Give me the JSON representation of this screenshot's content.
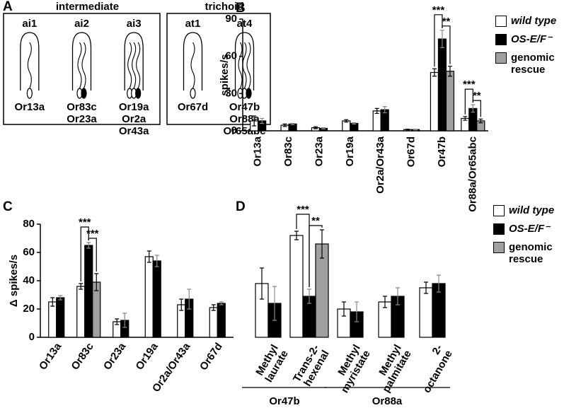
{
  "diagram": {
    "panel": "A",
    "groups": [
      {
        "title": "intermediate",
        "sensilla": [
          {
            "name": "ai1",
            "receptors": [
              "Or13a"
            ]
          },
          {
            "name": "ai2",
            "receptors": [
              "Or83c",
              "Or23a"
            ]
          },
          {
            "name": "ai3",
            "receptors": [
              "Or19a",
              "Or2a",
              "Or43a"
            ]
          }
        ]
      },
      {
        "title": "trichoid",
        "sensilla": [
          {
            "name": "at1",
            "receptors": [
              "Or67d"
            ]
          },
          {
            "name": "at4",
            "receptors": [
              "Or47b",
              "Or88a",
              "Or65abc"
            ]
          }
        ]
      }
    ]
  },
  "chart_data": [
    {
      "type": "bar",
      "panel": "B",
      "ylabel": "spikes/s",
      "categories": [
        "Or13a",
        "Or83c",
        "Or23a",
        "Or19a",
        "Or2a/Or43a",
        "Or67d",
        "Or47b",
        "Or88a/Or65abc"
      ],
      "series": [
        {
          "name": "wild type",
          "color": "#ffffff",
          "italic": true,
          "values": [
            8,
            4.5,
            2.5,
            8,
            16,
            1,
            47,
            10
          ],
          "errors": [
            4,
            1,
            0.8,
            1,
            2,
            0.3,
            3,
            1.5
          ]
        },
        {
          "name": "OS-E/F⁻",
          "color": "#000000",
          "italic": true,
          "values": [
            8,
            5.5,
            2,
            6,
            17,
            1,
            74,
            18
          ],
          "errors": [
            2,
            0.5,
            0.5,
            0.5,
            2.5,
            0.3,
            7,
            3
          ]
        },
        {
          "name": "genomic rescue",
          "color": "#a0a0a0",
          "italic": false,
          "values": [
            null,
            null,
            null,
            null,
            null,
            null,
            48,
            8
          ],
          "errors": [
            null,
            null,
            null,
            null,
            null,
            null,
            4,
            1.5
          ]
        }
      ],
      "annotations": [
        {
          "text": "***",
          "category": "Or47b",
          "between": [
            "wild type",
            "OS-E/F⁻"
          ]
        },
        {
          "text": "**",
          "category": "Or47b",
          "between": [
            "OS-E/F⁻",
            "genomic rescue"
          ]
        },
        {
          "text": "***",
          "category": "Or88a/Or65abc",
          "between": [
            "wild type",
            "OS-E/F⁻"
          ]
        },
        {
          "text": "**",
          "category": "Or88a/Or65abc",
          "between": [
            "OS-E/F⁻",
            "genomic rescue"
          ]
        }
      ],
      "ylim": [
        0,
        90
      ],
      "yticks": [
        0,
        30,
        60,
        90
      ],
      "legend": true
    },
    {
      "type": "bar",
      "panel": "C",
      "ylabel": "Δ spikes/s",
      "categories": [
        "Or13a",
        "Or83c",
        "Or23a",
        "Or19a",
        "Or2a/Or43a",
        "Or67d"
      ],
      "series": [
        {
          "name": "wild type",
          "color": "#ffffff",
          "italic": true,
          "values": [
            25,
            36,
            11,
            57,
            23,
            21
          ],
          "errors": [
            3,
            2,
            2,
            4,
            4,
            2
          ]
        },
        {
          "name": "OS-E/F⁻",
          "color": "#000000",
          "italic": true,
          "values": [
            28,
            65,
            12,
            54,
            27,
            24
          ],
          "errors": [
            1.5,
            2,
            5,
            4,
            7,
            1
          ]
        },
        {
          "name": "genomic rescue",
          "color": "#a0a0a0",
          "italic": false,
          "values": [
            null,
            39,
            null,
            null,
            null,
            null
          ],
          "errors": [
            null,
            6,
            null,
            null,
            null,
            null
          ]
        }
      ],
      "annotations": [
        {
          "text": "***",
          "category": "Or83c",
          "between": [
            "wild type",
            "OS-E/F⁻"
          ]
        },
        {
          "text": "***",
          "category": "Or83c",
          "between": [
            "OS-E/F⁻",
            "genomic rescue"
          ]
        }
      ],
      "ylim": [
        0,
        80
      ],
      "yticks": [
        0,
        20,
        40,
        60,
        80
      ],
      "legend": false
    },
    {
      "type": "bar",
      "panel": "D",
      "categories": [
        "Methyl laurate",
        "Trans-2-hexenal",
        "Methyl myristate",
        "Methyl palmitate",
        "2-octanone"
      ],
      "series": [
        {
          "name": "wild type",
          "color": "#ffffff",
          "italic": true,
          "values": [
            38,
            72,
            20,
            25,
            35
          ],
          "errors": [
            11,
            3,
            5,
            4,
            4
          ]
        },
        {
          "name": "OS-E/F⁻",
          "color": "#000000",
          "italic": true,
          "values": [
            24,
            29,
            18,
            29,
            38
          ],
          "errors": [
            12,
            5,
            7,
            6,
            6
          ]
        },
        {
          "name": "genomic rescue",
          "color": "#a0a0a0",
          "italic": false,
          "values": [
            null,
            66,
            null,
            null,
            null
          ],
          "errors": [
            null,
            10,
            null,
            null,
            null
          ]
        }
      ],
      "annotations": [
        {
          "text": "***",
          "category": "Trans-2-hexenal",
          "between": [
            "wild type",
            "OS-E/F⁻"
          ]
        },
        {
          "text": "**",
          "category": "Trans-2-hexenal",
          "between": [
            "OS-E/F⁻",
            "genomic rescue"
          ]
        }
      ],
      "groups": [
        {
          "label": "Or47b",
          "count": 2
        },
        {
          "label": "Or88a",
          "count": 3
        }
      ],
      "ylim": [
        0,
        80
      ],
      "show_axis": false,
      "legend": true
    }
  ]
}
